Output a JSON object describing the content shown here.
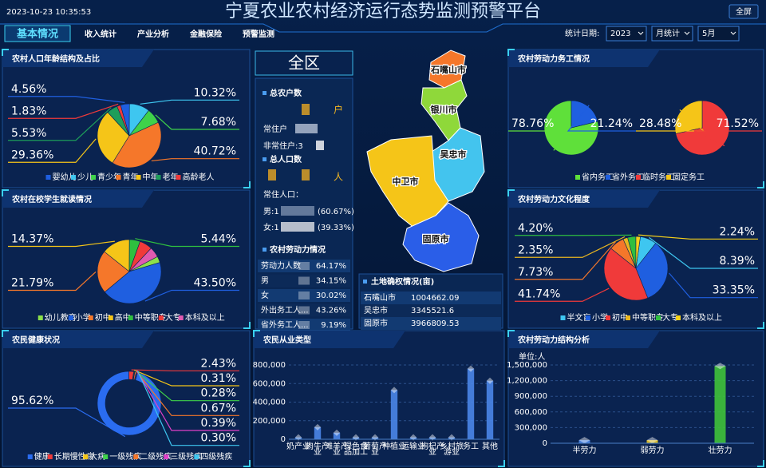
{
  "header": {
    "datetime": "2023-10-23 10:35:53",
    "title": "宁夏农业农村经济运行态势监测预警平台",
    "fullscreen": "全屏"
  },
  "nav": {
    "tabs": [
      "基本情况",
      "收入统计",
      "产业分析",
      "金融保险",
      "预警监测"
    ],
    "active": 0,
    "date_label": "统计日期:",
    "year": "2023",
    "mode": "月统计",
    "month": "5月"
  },
  "region": {
    "name": "全区",
    "households_label": "总农户数",
    "household_unit": "户",
    "resident_households": "常住户",
    "nonresident_households": "非常住户:3",
    "population_label": "总人口数",
    "population_unit": "人",
    "resident_population": "常住人口：",
    "male": "男:1",
    "male_pct": "(60.67%)",
    "female": "女:1",
    "female_pct": "(39.33%)",
    "labor": {
      "title": "农村劳动力情况",
      "rows": [
        [
          "劳动力人数",
          "64.17%"
        ],
        [
          "男",
          "34.15%"
        ],
        [
          "女",
          "30.02%"
        ],
        [
          "外出务工人...",
          "43.26%"
        ],
        [
          "省外务工人...",
          "9.19%"
        ]
      ]
    },
    "cities": [
      "石嘴山市",
      "银川市",
      "吴忠市",
      "中卫市",
      "固原市"
    ]
  },
  "land": {
    "title": "土地确权情况(亩)",
    "rows": [
      [
        "石嘴山市",
        "1004662.09"
      ],
      [
        "吴忠市",
        "3345521.6"
      ],
      [
        "固原市",
        "3966809.53"
      ]
    ]
  },
  "charts": [
    {
      "type": "pie",
      "title": "农村人口年龄结构及占比",
      "categories": [
        "婴幼儿",
        "少儿",
        "青少年",
        "青年",
        "中年",
        "老年",
        "高龄老人"
      ],
      "values": [
        4.56,
        10.32,
        7.68,
        40.72,
        29.36,
        5.53,
        1.83
      ],
      "value_labels": [
        "4.56%",
        "10.32%",
        "7.68%",
        "40.72%",
        "29.36%",
        "5.53%",
        "1.83%"
      ],
      "colors": [
        "#1f5fe0",
        "#3ec6f0",
        "#3fd24a",
        "#f5772a",
        "#f5c518",
        "#1e9e5a",
        "#f03a3a"
      ]
    },
    {
      "type": "pie",
      "title": "农村在校学生就读情况",
      "categories": [
        "幼儿教育",
        "小学",
        "初中",
        "高中",
        "中等职专",
        "大专",
        "本科及以上"
      ],
      "values": [
        3.2,
        43.5,
        21.79,
        14.37,
        5.44,
        6.5,
        5.2
      ],
      "value_labels": [
        null,
        "43.50%",
        "21.79%",
        "14.37%",
        "5.44%",
        null,
        null
      ],
      "colors": [
        "#8be04a",
        "#1f5fe0",
        "#f5772a",
        "#f5c518",
        "#2fbf3f",
        "#f03a3a",
        "#e05ab0"
      ]
    },
    {
      "type": "donut",
      "title": "农民健康状况",
      "categories": [
        "健康",
        "长期慢性病",
        "大病",
        "一级残疾",
        "二级残疾",
        "三级残疾",
        "四级残疾"
      ],
      "values": [
        95.62,
        2.43,
        0.31,
        0.28,
        0.67,
        0.39,
        0.3
      ],
      "value_labels": [
        "95.62%",
        "2.43%",
        "0.31%",
        "0.28%",
        "0.67%",
        "0.39%",
        "0.30%"
      ],
      "colors": [
        "#2a6cf0",
        "#f03a3a",
        "#f5c518",
        "#3fd24a",
        "#f5772a",
        "#e040c8",
        "#3ec6f0"
      ]
    },
    {
      "type": "bar",
      "title": "农民从业类型",
      "categories": [
        "奶产业",
        "肉牛产业",
        "滩羊产业",
        "绿色食品加工",
        "葡萄产业",
        "种植业",
        "运输业",
        "枸杞产业",
        "乡村旅游业",
        "务工",
        "其他"
      ],
      "values": [
        20000,
        130000,
        70000,
        20000,
        20000,
        530000,
        20000,
        20000,
        20000,
        760000,
        630000
      ],
      "color": "#4a86e8",
      "ylim": [
        0,
        800000
      ],
      "yticks": [
        0,
        {
          "value": 200000,
          "label": "200,000"
        },
        {
          "value": 400000,
          "label": "400,000"
        },
        {
          "value": 600000,
          "label": "600,000"
        },
        {
          "value": 800000,
          "label": "800,000"
        }
      ],
      "grid": true
    },
    {
      "type": "multi_pie",
      "title": "农村劳动力务工情况",
      "categories": [
        "省内务工",
        "省外务工",
        "临时务工",
        "固定务工"
      ],
      "colors": [
        "#5fe03a",
        "#1f5fe0",
        "#f03a3a",
        "#f5c518"
      ],
      "pies": [
        {
          "values": [
            78.76,
            21.24,
            null,
            null
          ],
          "value_labels": [
            "78.76%",
            "21.24%",
            null,
            null
          ]
        },
        {
          "values": [
            null,
            null,
            71.52,
            28.48
          ],
          "value_labels": [
            null,
            null,
            "71.52%",
            "28.48%"
          ]
        }
      ]
    },
    {
      "type": "pie",
      "title": "农村劳动力文化程度",
      "categories": [
        "半文盲",
        "小学",
        "初中",
        null,
        "中等职专",
        "大专",
        "本科及以上"
      ],
      "values": [
        8.39,
        33.35,
        41.74,
        7.73,
        2.35,
        4.2,
        2.24
      ],
      "value_labels": [
        "8.39%",
        "33.35%",
        "41.74%",
        "7.73%",
        "2.35%",
        "4.20%",
        "2.24%"
      ],
      "colors": [
        "#3ec6f0",
        "#1f5fe0",
        "#f03a3a",
        "#f5772a",
        "#e8b520",
        "#2fbf3f",
        "#f5d01a"
      ]
    },
    {
      "type": "bar",
      "title": "农村劳动力结构分析",
      "unit": "单位:人",
      "categories": [
        "半劳力",
        "弱劳力",
        "壮劳力"
      ],
      "values": [
        60000,
        60000,
        1480000
      ],
      "colors": [
        "#4a86e8",
        "#e8c520",
        "#3fc23a"
      ],
      "ylim": [
        0,
        1500000
      ],
      "yticks": [
        0,
        {
          "value": 300000,
          "label": "300,000"
        },
        {
          "value": 600000,
          "label": "600,000"
        },
        {
          "value": 900000,
          "label": "900,000"
        },
        {
          "value": 1200000,
          "label": "1,200,000"
        },
        {
          "value": 1500000,
          "label": "1,500,000"
        }
      ],
      "grid": true
    }
  ]
}
